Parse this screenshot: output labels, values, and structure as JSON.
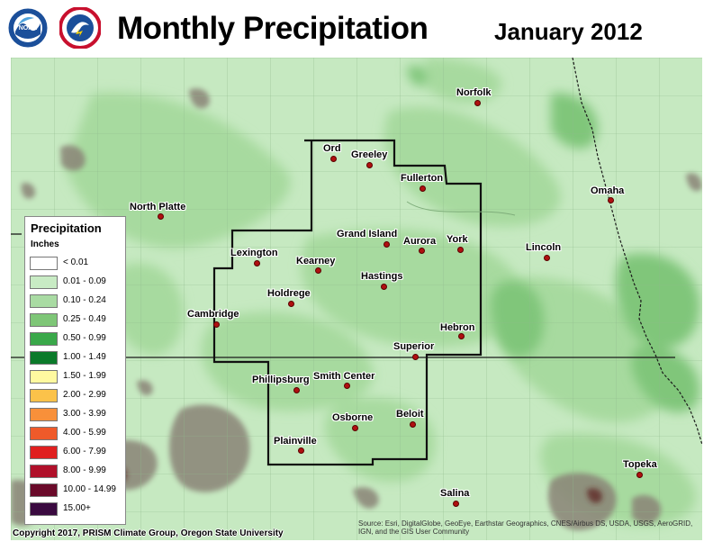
{
  "header": {
    "title": "Monthly Precipitation",
    "period": "January 2012",
    "logos": [
      {
        "name": "noaa-logo",
        "text": "NOAA"
      },
      {
        "name": "nws-logo",
        "text": "NATIONAL WEATHER SERVICE"
      }
    ]
  },
  "colors": {
    "background_light": "#c8ebc4",
    "background_mid": "#a9dba3",
    "background_dark": "#82c87b",
    "state_line": "#1a1a1a",
    "county_line": "#8ab388",
    "city_dot": "#b01010"
  },
  "cities": [
    {
      "name": "Norfolk",
      "label": "Norfolk"
    },
    {
      "name": "ord",
      "label": "Ord"
    },
    {
      "name": "greeley",
      "label": "Greeley"
    },
    {
      "name": "fullerton",
      "label": "Fullerton"
    },
    {
      "name": "omaha",
      "label": "Omaha"
    },
    {
      "name": "north-platte",
      "label": "North Platte"
    },
    {
      "name": "grand-island",
      "label": "Grand Island"
    },
    {
      "name": "aurora",
      "label": "Aurora"
    },
    {
      "name": "york",
      "label": "York"
    },
    {
      "name": "lincoln",
      "label": "Lincoln"
    },
    {
      "name": "lexington",
      "label": "Lexington"
    },
    {
      "name": "kearney",
      "label": "Kearney"
    },
    {
      "name": "hastings",
      "label": "Hastings"
    },
    {
      "name": "holdrege",
      "label": "Holdrege"
    },
    {
      "name": "cambridge",
      "label": "Cambridge"
    },
    {
      "name": "hebron",
      "label": "Hebron"
    },
    {
      "name": "superior",
      "label": "Superior"
    },
    {
      "name": "phillipsburg",
      "label": "Phillipsburg"
    },
    {
      "name": "smith-center",
      "label": "Smith Center"
    },
    {
      "name": "osborne",
      "label": "Osborne"
    },
    {
      "name": "beloit",
      "label": "Beloit"
    },
    {
      "name": "plainville",
      "label": "Plainville"
    },
    {
      "name": "topeka",
      "label": "Topeka"
    },
    {
      "name": "salina",
      "label": "Salina"
    }
  ],
  "legend": {
    "title": "Precipitation",
    "units": "Inches",
    "items": [
      {
        "label": "< 0.01",
        "color": "#ffffff"
      },
      {
        "label": "0.01 - 0.09",
        "color": "#c8ebc4"
      },
      {
        "label": "0.10 - 0.24",
        "color": "#a9dba3"
      },
      {
        "label": "0.25 - 0.49",
        "color": "#7ec677"
      },
      {
        "label": "0.50 - 0.99",
        "color": "#3aa84a"
      },
      {
        "label": "1.00 - 1.49",
        "color": "#0b7a2a"
      },
      {
        "label": "1.50 - 1.99",
        "color": "#fff9a0"
      },
      {
        "label": "2.00 - 2.99",
        "color": "#fbc24a"
      },
      {
        "label": "3.00 - 3.99",
        "color": "#f8903a"
      },
      {
        "label": "4.00 - 5.99",
        "color": "#ef5a2a"
      },
      {
        "label": "6.00 - 7.99",
        "color": "#e02020"
      },
      {
        "label": "8.00 - 9.99",
        "color": "#b0102a"
      },
      {
        "label": "10.00 - 14.99",
        "color": "#6a0a2a"
      },
      {
        "label": "15.00+",
        "color": "#3a0a40"
      }
    ]
  },
  "credit": "Copyright 2017, PRISM Climate Group, Oregon State University",
  "source": "Source: Esri, DigitalGlobe, GeoEye, Earthstar Geographics, CNES/Airbus DS, USDA, USGS, AeroGRID, IGN, and the GIS User Community"
}
